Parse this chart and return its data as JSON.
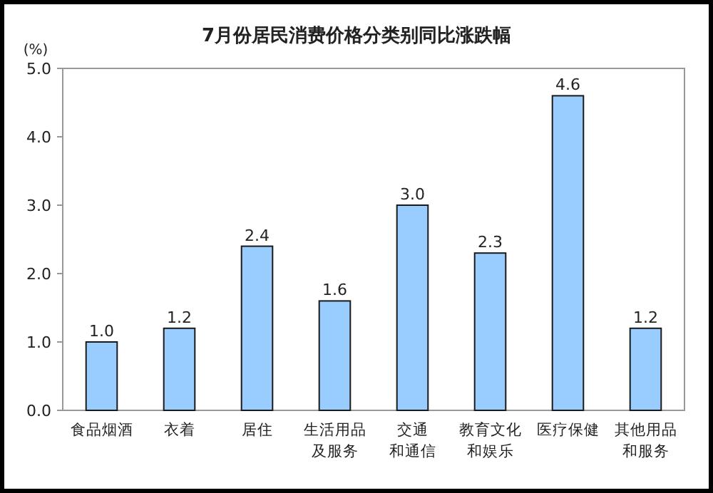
{
  "chart_data": {
    "type": "bar",
    "title": "7月份居民消费价格分类别同比涨跌幅",
    "ylabel": "(%)",
    "categories": [
      "食品烟酒",
      "衣着",
      "居住",
      "生活用品及服务",
      "交通和通信",
      "教育文化和娱乐",
      "医疗保健",
      "其他用品和服务"
    ],
    "values": [
      1.0,
      1.2,
      2.4,
      1.6,
      3.0,
      2.3,
      4.6,
      1.2
    ],
    "color": "#99ccff",
    "ylim": [
      0,
      5
    ],
    "yticks": [
      {
        "value": 0,
        "label": "0.0"
      },
      {
        "value": 1,
        "label": "1.0"
      },
      {
        "value": 2,
        "label": "2.0"
      },
      {
        "value": 3,
        "label": "3.0"
      },
      {
        "value": 4,
        "label": "4.0"
      },
      {
        "value": 5,
        "label": "5.0"
      }
    ],
    "value_labels": [
      "1.0",
      "1.2",
      "2.4",
      "1.6",
      "3.0",
      "2.3",
      "4.6",
      "1.2"
    ],
    "grid": false
  }
}
